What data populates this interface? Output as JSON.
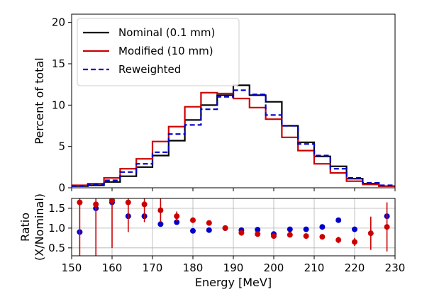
{
  "chart_data": [
    {
      "type": "line",
      "panel": "top",
      "step": true,
      "ylabel": "Percent of total",
      "xlabel": "",
      "xlim": [
        150,
        230
      ],
      "ylim": [
        0,
        21
      ],
      "yticks": [
        0,
        5,
        10,
        15,
        20
      ],
      "grid": false,
      "legend_position": "top-left",
      "bin_edges": [
        150,
        154,
        158,
        162,
        166,
        170,
        174,
        178,
        182,
        186,
        190,
        194,
        198,
        202,
        206,
        210,
        214,
        218,
        222,
        226,
        230
      ],
      "series": [
        {
          "name": "Nominal (0.1 mm)",
          "color": "#000000",
          "dash": "solid",
          "values": [
            0.2,
            0.3,
            0.7,
            1.4,
            2.5,
            3.9,
            5.7,
            8.2,
            10.0,
            11.2,
            12.4,
            11.2,
            10.4,
            7.5,
            5.5,
            3.8,
            2.6,
            1.1,
            0.5,
            0.2
          ]
        },
        {
          "name": "Modified (10 mm)",
          "color": "#cc0000",
          "dash": "solid",
          "values": [
            0.3,
            0.5,
            1.2,
            2.3,
            3.5,
            5.6,
            7.4,
            9.8,
            11.5,
            11.4,
            10.8,
            9.7,
            8.3,
            6.1,
            4.5,
            2.9,
            1.8,
            0.8,
            0.4,
            0.2
          ]
        },
        {
          "name": "Reweighted",
          "color": "#0000cc",
          "dash": "dashed",
          "values": [
            0.2,
            0.4,
            0.9,
            1.9,
            2.9,
            4.3,
            6.5,
            7.6,
            9.5,
            11.0,
            11.8,
            11.3,
            8.8,
            7.5,
            5.3,
            3.9,
            2.3,
            1.2,
            0.6,
            0.3
          ]
        }
      ]
    },
    {
      "type": "scatter",
      "panel": "bottom",
      "ylabel": "Ratio\n(X/Nominal)",
      "ylabel_lines": [
        "Ratio",
        "(X/Nominal)"
      ],
      "xlabel": "Energy [MeV]",
      "xlim": [
        150,
        230
      ],
      "ylim": [
        0.3,
        1.75
      ],
      "xticks": [
        150,
        160,
        170,
        180,
        190,
        200,
        210,
        220,
        230
      ],
      "yticks": [
        0.5,
        1.0,
        1.5
      ],
      "ytick_labels": [
        "0.5",
        "1.0",
        "1.5"
      ],
      "grid": true,
      "series": [
        {
          "color": "#0000cc",
          "x": [
            152,
            156,
            160,
            164,
            168,
            172,
            176,
            180,
            184,
            188,
            192,
            196,
            200,
            204,
            208,
            212,
            216,
            220,
            228
          ],
          "y": [
            0.9,
            1.5,
            1.65,
            1.3,
            1.3,
            1.1,
            1.15,
            0.93,
            0.95,
            1.0,
            0.95,
            0.96,
            0.85,
            0.97,
            0.97,
            1.03,
            1.2,
            0.97,
            1.3
          ],
          "err": [
            0,
            0,
            0,
            0,
            0,
            0,
            0,
            0,
            0,
            0,
            0,
            0,
            0,
            0,
            0,
            0,
            0,
            0,
            0
          ]
        },
        {
          "color": "#cc0000",
          "x": [
            152,
            156,
            160,
            164,
            168,
            172,
            176,
            180,
            184,
            188,
            192,
            196,
            200,
            204,
            208,
            212,
            216,
            220,
            224,
            228
          ],
          "y": [
            1.65,
            1.6,
            1.7,
            1.65,
            1.6,
            1.45,
            1.3,
            1.2,
            1.13,
            1.0,
            0.88,
            0.85,
            0.8,
            0.83,
            0.8,
            0.78,
            0.7,
            0.65,
            0.87,
            1.03
          ],
          "err": [
            1.4,
            1.4,
            1.2,
            0.75,
            0.45,
            0.3,
            0.12,
            0.07,
            0.05,
            0.03,
            0.02,
            0.02,
            0.03,
            0.03,
            0.04,
            0.05,
            0.08,
            0.1,
            0.42,
            0.62
          ]
        }
      ]
    }
  ]
}
